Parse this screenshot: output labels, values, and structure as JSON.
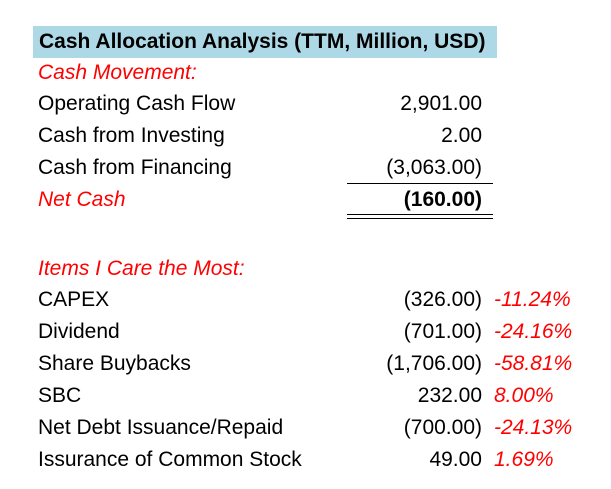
{
  "title": "Cash Allocation Analysis (TTM, Million, USD)",
  "cash_movement": {
    "heading": "Cash Movement:",
    "rows": [
      {
        "label": "Operating Cash Flow",
        "value": "2,901.00"
      },
      {
        "label": "Cash from Investing",
        "value": "2.00"
      },
      {
        "label": "Cash from Financing",
        "value": "(3,063.00)"
      }
    ],
    "net": {
      "label": "Net Cash",
      "value": "(160.00)"
    }
  },
  "items": {
    "heading": "Items I Care the Most:",
    "rows": [
      {
        "label": "CAPEX",
        "value": "(326.00)",
        "pct": "-11.24%"
      },
      {
        "label": "Dividend",
        "value": "(701.00)",
        "pct": "-24.16%"
      },
      {
        "label": "Share Buybacks",
        "value": "(1,706.00)",
        "pct": "-58.81%"
      },
      {
        "label": "SBC",
        "value": "232.00",
        "pct": "8.00%"
      },
      {
        "label": "Net Debt Issuance/Repaid",
        "value": "(700.00)",
        "pct": "-24.13%"
      },
      {
        "label": "Issurance of Common Stock",
        "value": "49.00",
        "pct": "1.69%"
      }
    ]
  },
  "colors": {
    "title_background": "#add8e6",
    "accent_red": "#ff0000"
  }
}
